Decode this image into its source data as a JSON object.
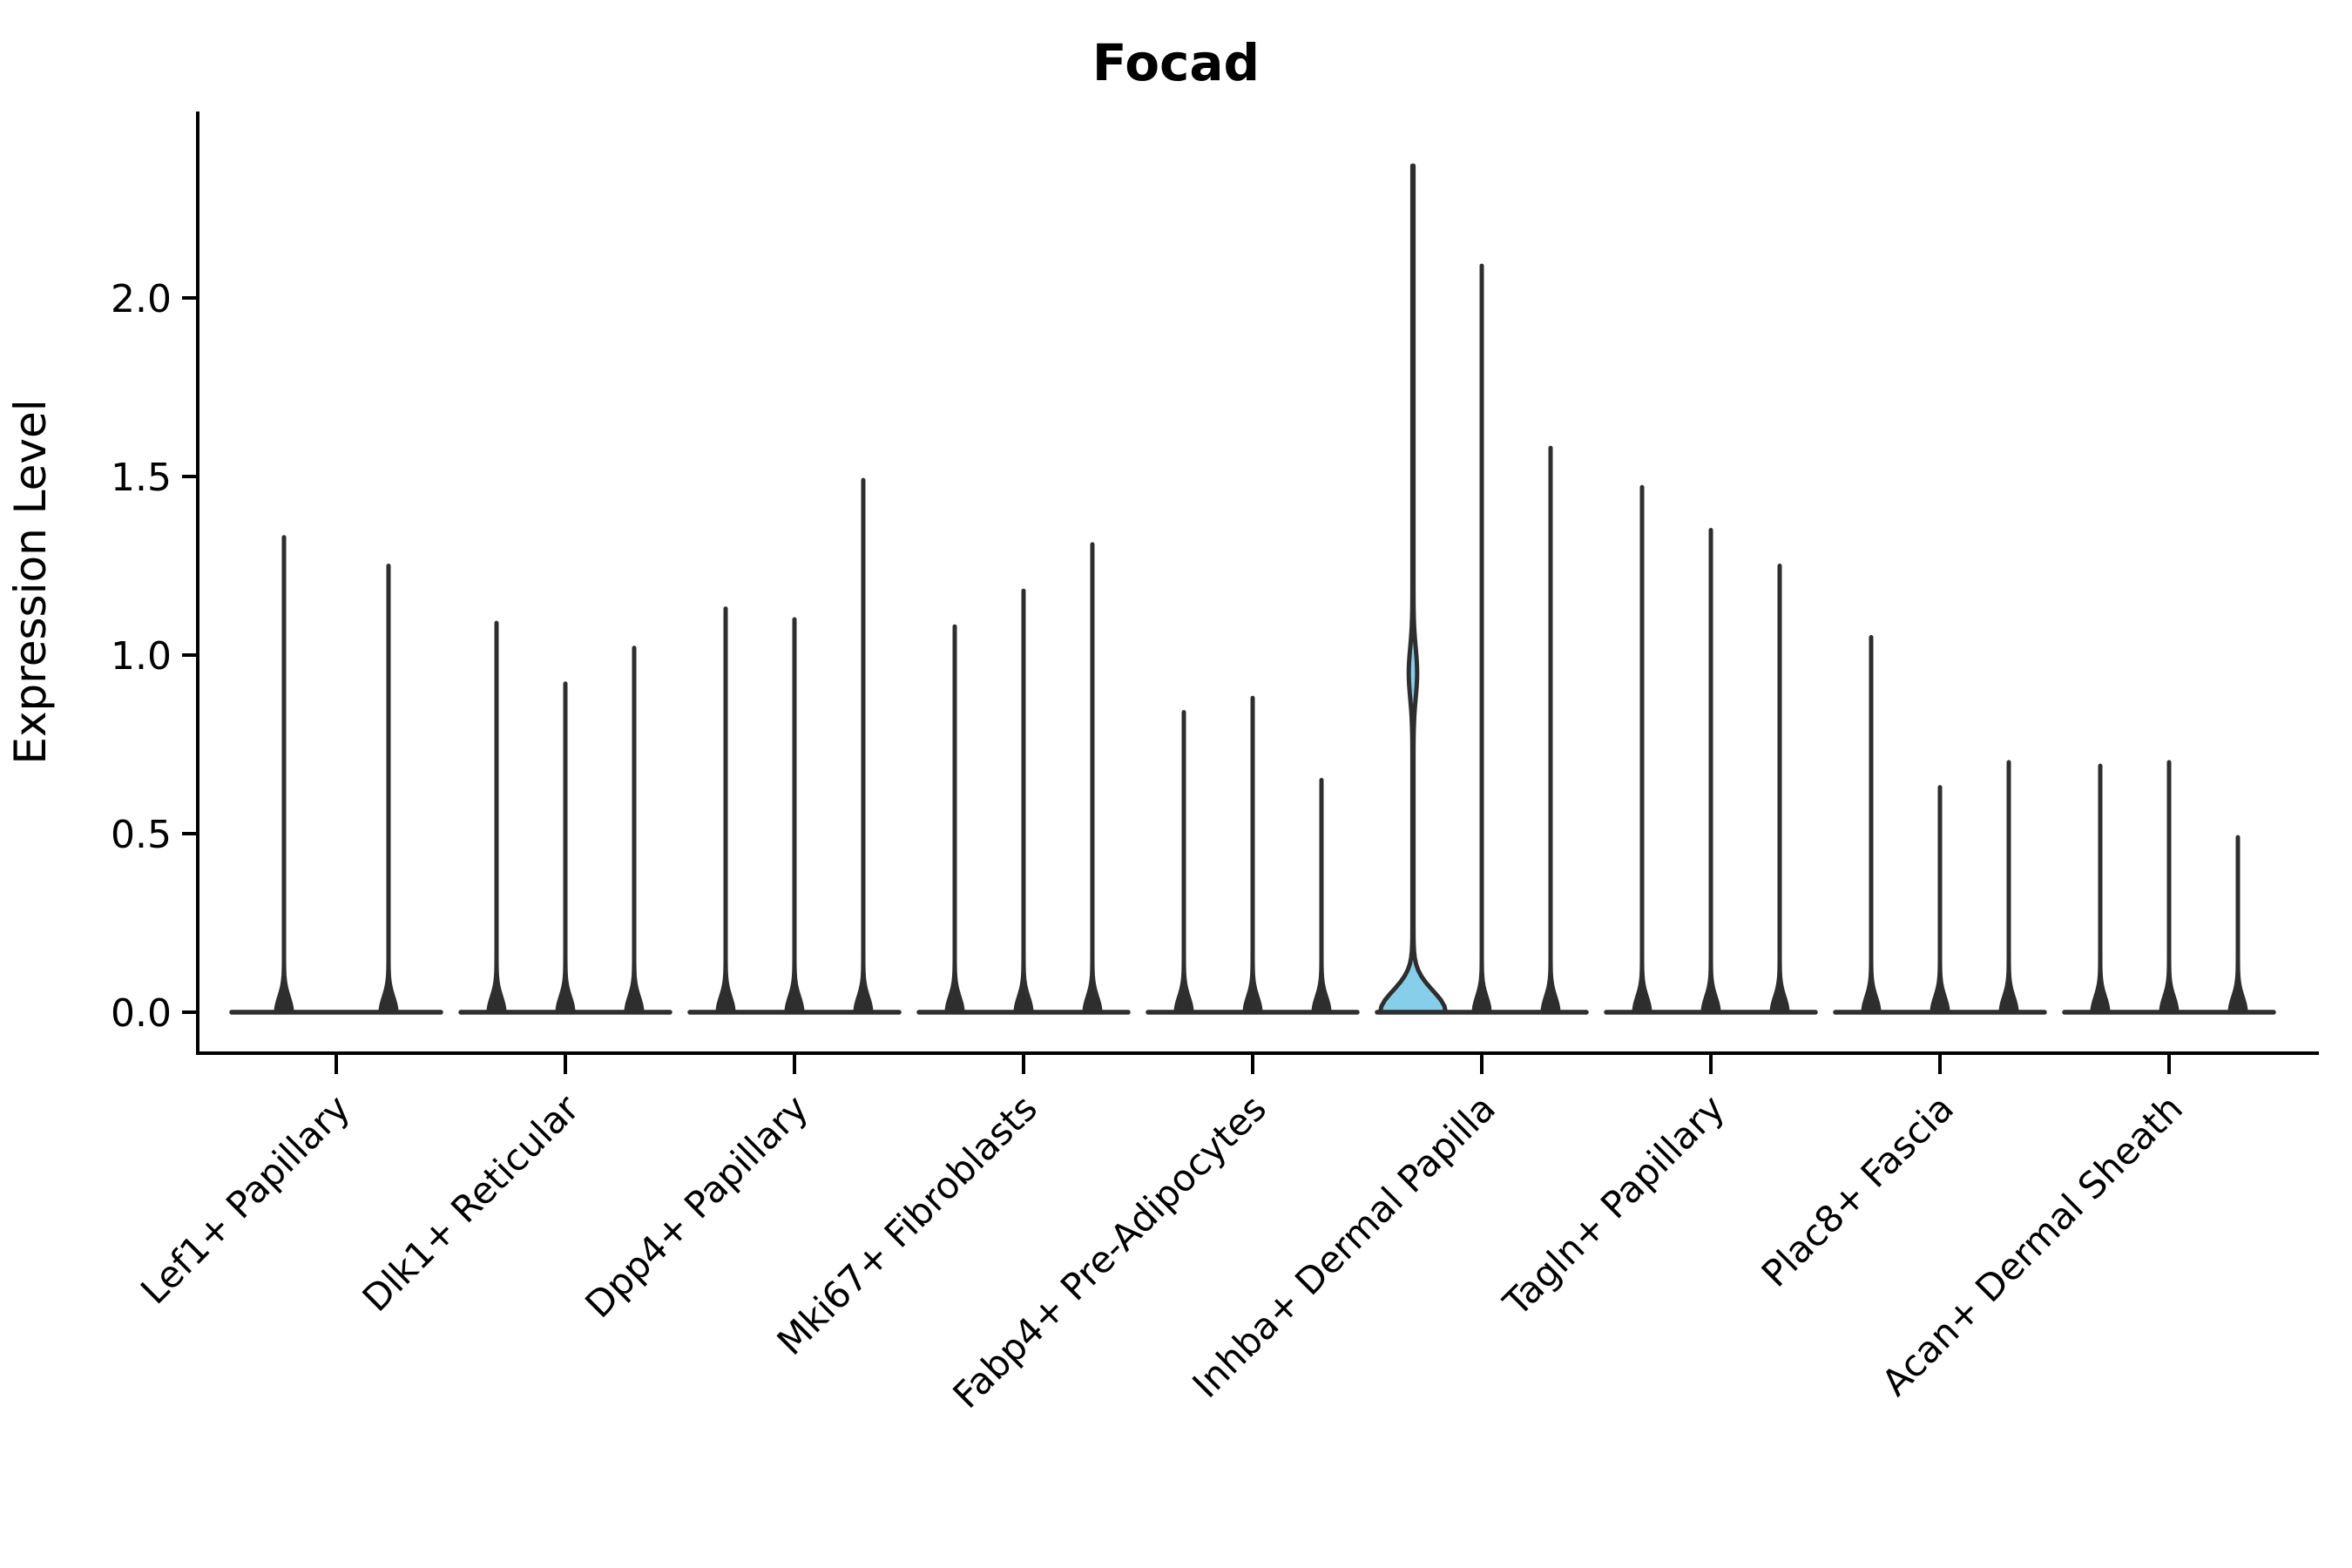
{
  "chart_data": {
    "type": "violin",
    "title": "Focad",
    "ylabel": "Expression Level",
    "xlabel": "",
    "yticks": [
      0.0,
      0.5,
      1.0,
      1.5,
      2.0
    ],
    "ytick_labels": [
      "0.0",
      "0.5",
      "1.0",
      "1.5",
      "2.0"
    ],
    "ylim": [
      -0.12,
      2.52
    ],
    "grid": false,
    "legend": "none",
    "x_tick_rotation": 45,
    "violin_line_color": "#2e2e2e",
    "axis_color": "#000000",
    "highlight_fill_color": "#87CEEB",
    "categories": [
      "Lef1+ Papillary",
      "Dlk1+ Reticular",
      "Dpp4+ Papillary",
      "Mki67+ Fibroblasts",
      "Fabp4+ Pre-Adipocytes",
      "Inhba+ Dermal Papilla",
      "Tagln+ Papillary",
      "Plac8+ Fascia",
      "Acan+ Dermal Sheath"
    ],
    "groups": [
      {
        "label": "Lef1+ Papillary",
        "violins": [
          {
            "max": 1.33
          },
          {
            "max": 1.25
          }
        ]
      },
      {
        "label": "Dlk1+ Reticular",
        "violins": [
          {
            "max": 1.09
          },
          {
            "max": 0.92
          },
          {
            "max": 1.02
          }
        ]
      },
      {
        "label": "Dpp4+ Papillary",
        "violins": [
          {
            "max": 1.13
          },
          {
            "max": 1.1
          },
          {
            "max": 1.49
          }
        ]
      },
      {
        "label": "Mki67+ Fibroblasts",
        "violins": [
          {
            "max": 1.08
          },
          {
            "max": 1.18
          },
          {
            "max": 1.31
          }
        ]
      },
      {
        "label": "Fabp4+ Pre-Adipocytes",
        "violins": [
          {
            "max": 0.84
          },
          {
            "max": 0.88
          },
          {
            "max": 0.65
          }
        ]
      },
      {
        "label": "Inhba+ Dermal Papilla",
        "violins": [
          {
            "max": 2.37,
            "filled": true,
            "fill_color": "#87CEEB",
            "bulge_center": 0.95,
            "bulge_halfspan": 0.2,
            "wide_base": true
          },
          {
            "max": 2.09
          },
          {
            "max": 1.58
          }
        ]
      },
      {
        "label": "Tagln+ Papillary",
        "violins": [
          {
            "max": 1.47
          },
          {
            "max": 1.35
          },
          {
            "max": 1.25
          }
        ]
      },
      {
        "label": "Plac8+ Fascia",
        "violins": [
          {
            "max": 1.05
          },
          {
            "max": 0.63
          },
          {
            "max": 0.7
          }
        ]
      },
      {
        "label": "Acan+ Dermal Sheath",
        "violins": [
          {
            "max": 0.69
          },
          {
            "max": 0.7
          },
          {
            "max": 0.49
          }
        ]
      }
    ]
  }
}
